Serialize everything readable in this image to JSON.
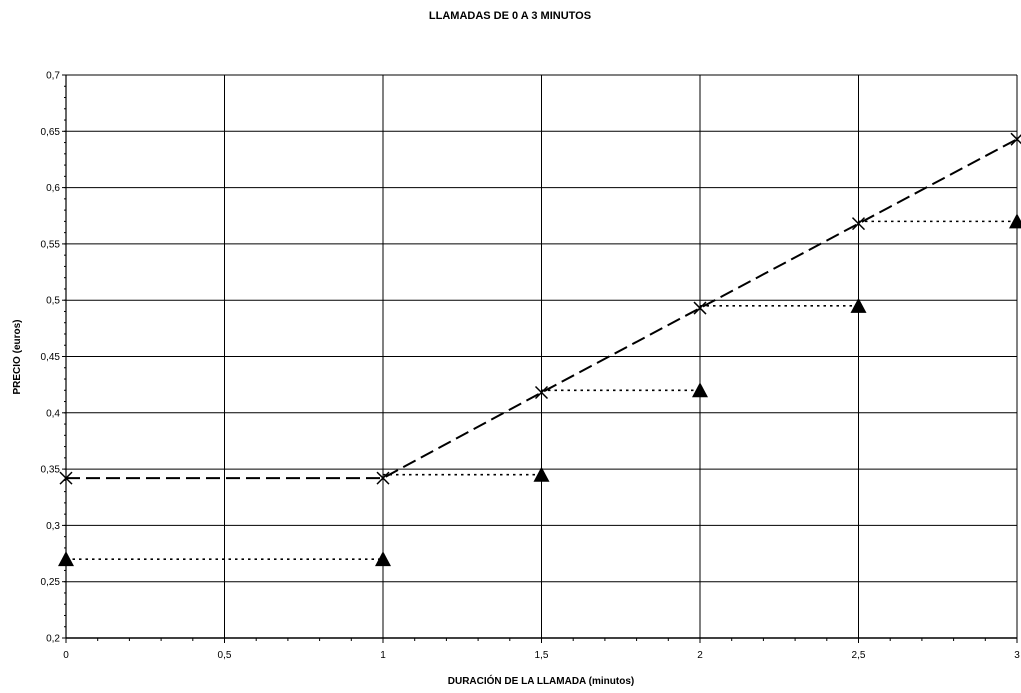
{
  "chart_data": {
    "type": "line",
    "title": "LLAMADAS DE 0 A 3 MINUTOS",
    "xlabel": "DURACIÓN DE LA LLAMADA (minutos)",
    "ylabel": "PRECIO (euros)",
    "xlim": [
      0,
      3
    ],
    "ylim": [
      0.2,
      0.7
    ],
    "x_ticks": [
      "0",
      "0,5",
      "1",
      "1,5",
      "2",
      "2,5",
      "3"
    ],
    "y_ticks": [
      "0,2",
      "0,25",
      "0,3",
      "0,35",
      "0,4",
      "0,45",
      "0,5",
      "0,55",
      "0,6",
      "0,65",
      "0,7"
    ],
    "grid": true,
    "series": [
      {
        "marker": "x",
        "line": "long-dash",
        "color": "#000000",
        "x": [
          0,
          1,
          1.5,
          2,
          2.5,
          3
        ],
        "y": [
          0.342,
          0.342,
          0.418,
          0.493,
          0.568,
          0.643
        ]
      },
      {
        "marker": "triangle",
        "line": "dotted-steps",
        "color": "#000000",
        "x": [
          0,
          1,
          1,
          1.5,
          1.5,
          2,
          2,
          2.5,
          2.5,
          3
        ],
        "y": [
          0.27,
          0.27,
          0.345,
          0.345,
          0.42,
          0.42,
          0.495,
          0.495,
          0.57,
          0.57
        ],
        "segments": [
          [
            0,
            1
          ],
          [
            2,
            3
          ],
          [
            4,
            5
          ],
          [
            6,
            7
          ],
          [
            8,
            9
          ]
        ]
      }
    ]
  }
}
